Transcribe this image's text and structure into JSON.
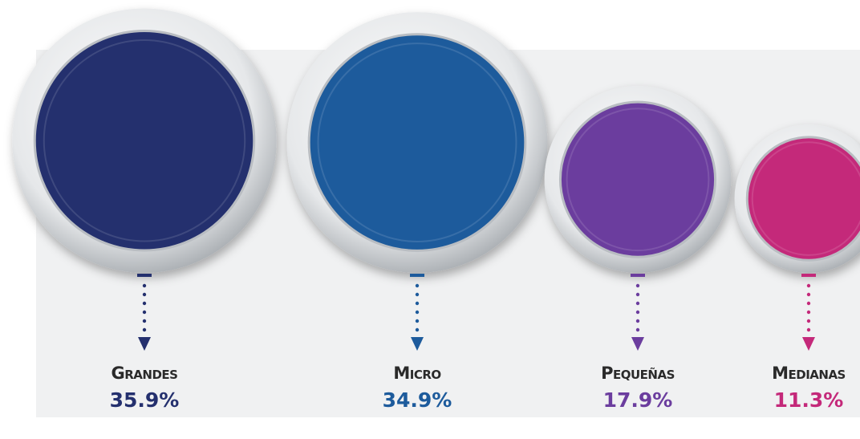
{
  "chart_data": {
    "type": "bubble",
    "categories": [
      "Grandes",
      "Micro",
      "Pequeñas",
      "Medianas"
    ],
    "values": [
      35.9,
      34.9,
      17.9,
      11.3
    ],
    "value_labels": [
      "35.9%",
      "34.9%",
      "17.9%",
      "11.3%"
    ],
    "colors": [
      "#24306e",
      "#1d5b9c",
      "#6b3d9e",
      "#c4297a"
    ]
  }
}
